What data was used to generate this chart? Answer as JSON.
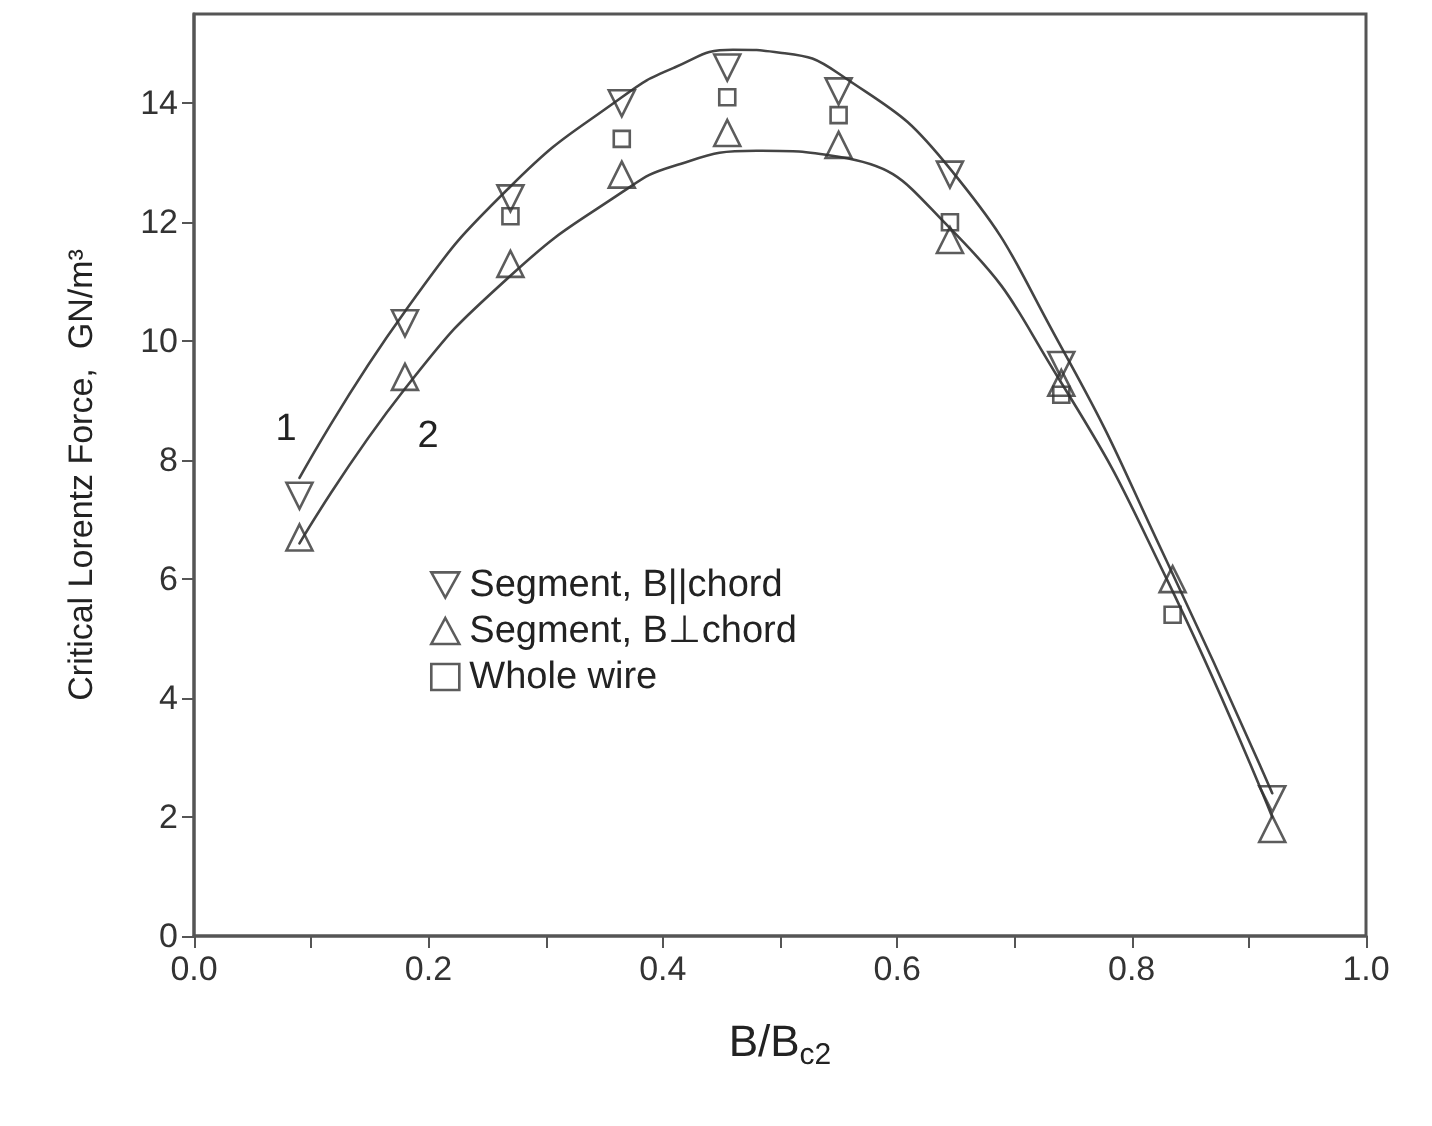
{
  "chart_data": {
    "type": "scatter",
    "xlabel": "B/B$_{c2}$",
    "ylabel": "Critical Lorentz Force,  GN/m³",
    "x": [
      0.09,
      0.18,
      0.27,
      0.365,
      0.455,
      0.55,
      0.645,
      0.74,
      0.835,
      0.92
    ],
    "series": [
      {
        "name": "Segment, B||chord",
        "color": "#333333",
        "marker": "triangle_down",
        "values": [
          7.4,
          10.3,
          12.4,
          14.0,
          14.6,
          14.2,
          12.8,
          9.6,
          null,
          2.3
        ]
      },
      {
        "name": "Segment, B⊥chord",
        "color": "#333333",
        "marker": "triangle",
        "values": [
          6.7,
          9.4,
          11.3,
          12.8,
          13.5,
          13.3,
          11.7,
          9.3,
          6.0,
          1.8
        ]
      },
      {
        "name": "Whole wire",
        "color": "#333333",
        "marker": "square",
        "values": [
          null,
          null,
          12.1,
          13.4,
          14.1,
          13.8,
          12.0,
          9.1,
          5.4,
          null
        ]
      },
      {
        "type": "line",
        "color": "#444444",
        "marker": "none",
        "x": [
          0.09,
          0.18,
          0.27,
          0.365,
          0.41,
          0.46,
          0.5,
          0.55,
          0.645,
          0.74,
          0.83,
          0.92
        ],
        "values": [
          7.7,
          10.5,
          12.6,
          14.1,
          14.6,
          14.9,
          14.85,
          14.5,
          12.9,
          9.9,
          6.3,
          2.4
        ]
      },
      {
        "type": "line",
        "color": "#444444",
        "marker": "none",
        "x": [
          0.09,
          0.18,
          0.27,
          0.365,
          0.41,
          0.48,
          0.55,
          0.645,
          0.74,
          0.83,
          0.92
        ],
        "values": [
          6.6,
          9.2,
          11.1,
          12.5,
          12.95,
          13.2,
          13.1,
          11.9,
          9.3,
          6.0,
          2.0
        ]
      }
    ],
    "annotations": [
      "1",
      "2"
    ],
    "xlim": [
      0,
      1
    ],
    "xticks": [
      {
        "value": 0,
        "label": "0.0"
      },
      {
        "value": 0.1,
        "label": null
      },
      0.2,
      {
        "value": 0.3,
        "label": null
      },
      0.4,
      {
        "value": 0.5,
        "label": null
      },
      0.6,
      {
        "value": 0.7,
        "label": null
      },
      0.8,
      {
        "value": 0.9,
        "label": null
      },
      {
        "value": 1,
        "label": "1.0"
      }
    ],
    "ylim": [
      0,
      15.5
    ],
    "yticks": [
      0,
      2,
      4,
      6,
      8,
      10,
      12,
      14
    ],
    "grid": false,
    "legend": "center"
  }
}
